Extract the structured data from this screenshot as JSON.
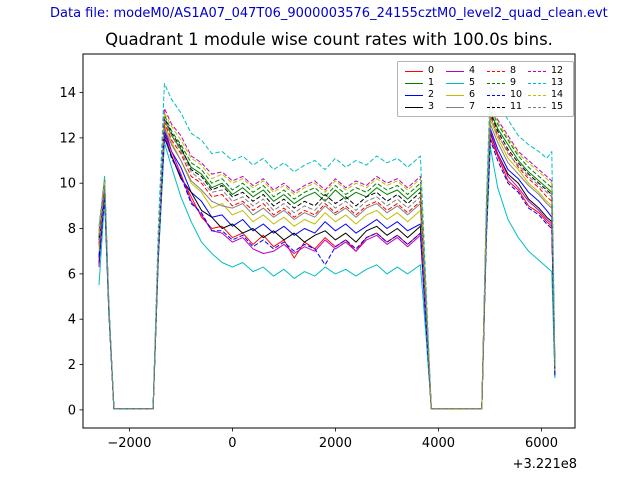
{
  "header": {
    "data_file_label": "Data file: modeM0/AS1A07_047T06_9000003576_24155cztM0_level2_quad_clean.evt",
    "color": "#0000cc"
  },
  "chart_data": {
    "type": "line",
    "title": "Quadrant 1 module wise count rates with 100.0s bins.",
    "xlabel": "",
    "ylabel": "",
    "x_offset_label": "+3.221e8",
    "xlim": [
      -2900,
      6650
    ],
    "ylim": [
      -0.8,
      15.7
    ],
    "xticks": {
      "values": [
        -2000,
        0,
        2000,
        4000,
        6000
      ],
      "labels": [
        "−2000",
        "0",
        "2000",
        "4000",
        "6000"
      ]
    },
    "yticks": {
      "values": [
        0,
        2,
        4,
        6,
        8,
        10,
        12,
        14
      ],
      "labels": [
        "0",
        "2",
        "4",
        "6",
        "8",
        "10",
        "12",
        "14"
      ]
    },
    "grid": false,
    "legend_position": "upper right",
    "x": [
      -2590,
      -2480,
      -2400,
      -2300,
      -1540,
      -1440,
      -1320,
      -1180,
      -1000,
      -800,
      -600,
      -400,
      -200,
      0,
      200,
      400,
      600,
      800,
      1000,
      1200,
      1400,
      1600,
      1800,
      2000,
      2200,
      2400,
      2600,
      2800,
      3000,
      3200,
      3400,
      3650,
      3760,
      3860,
      4840,
      4930,
      5005,
      5150,
      5350,
      5550,
      5750,
      5950,
      6100,
      6200,
      6260
    ],
    "series": [
      {
        "name": "0",
        "color": "#ff0000",
        "dash": "solid",
        "values": [
          6.4,
          9.7,
          4.5,
          0.05,
          0.05,
          6.7,
          12.2,
          11.2,
          10.3,
          9.4,
          8.5,
          8.0,
          8.1,
          7.6,
          7.8,
          7.3,
          7.7,
          7.2,
          7.5,
          6.7,
          7.4,
          7.1,
          7.6,
          7.2,
          7.5,
          7.0,
          7.6,
          7.8,
          7.4,
          7.7,
          7.3,
          7.8,
          3.7,
          0.05,
          0.05,
          7.8,
          12.0,
          11.2,
          10.1,
          9.7,
          9.0,
          8.7,
          8.3,
          8.1,
          1.6
        ]
      },
      {
        "name": "1",
        "color": "#008000",
        "dash": "solid",
        "values": [
          7.6,
          10.0,
          4.6,
          0.05,
          0.05,
          7.0,
          12.8,
          12.1,
          11.5,
          10.7,
          10.4,
          9.8,
          10.0,
          9.5,
          9.8,
          9.4,
          9.7,
          9.2,
          9.5,
          9.1,
          9.4,
          9.6,
          9.2,
          9.7,
          9.3,
          9.6,
          9.4,
          9.8,
          9.5,
          9.7,
          9.3,
          9.8,
          4.7,
          0.05,
          0.05,
          8.6,
          13.2,
          12.4,
          11.7,
          11.0,
          10.5,
          10.1,
          9.8,
          9.6,
          1.8
        ]
      },
      {
        "name": "2",
        "color": "#0000ff",
        "dash": "solid",
        "values": [
          6.8,
          9.5,
          4.4,
          0.05,
          0.05,
          6.8,
          12.3,
          11.4,
          10.7,
          9.6,
          9.2,
          8.5,
          8.6,
          8.1,
          8.4,
          7.9,
          8.2,
          7.8,
          8.1,
          7.7,
          8.0,
          7.8,
          8.3,
          7.9,
          8.2,
          7.8,
          8.1,
          8.4,
          8.0,
          8.3,
          7.9,
          8.2,
          4.1,
          0.05,
          0.05,
          8.1,
          12.4,
          11.5,
          10.6,
          10.2,
          9.6,
          9.2,
          8.8,
          8.5,
          1.7
        ]
      },
      {
        "name": "3",
        "color": "#000000",
        "dash": "solid",
        "values": [
          6.7,
          9.6,
          4.5,
          0.05,
          0.05,
          6.6,
          12.0,
          11.2,
          10.2,
          9.6,
          8.8,
          8.5,
          8.0,
          8.2,
          7.8,
          8.0,
          7.6,
          7.9,
          7.5,
          7.8,
          7.4,
          7.7,
          7.9,
          7.5,
          7.8,
          7.4,
          7.9,
          8.1,
          7.7,
          8.0,
          7.6,
          8.1,
          3.9,
          0.05,
          0.05,
          7.9,
          12.2,
          11.3,
          10.4,
          10.0,
          9.3,
          8.9,
          8.5,
          8.3,
          1.6
        ]
      },
      {
        "name": "4",
        "color": "#bf00bf",
        "dash": "solid",
        "values": [
          6.3,
          9.8,
          4.4,
          0.05,
          0.05,
          6.9,
          12.5,
          11.4,
          10.4,
          9.2,
          8.6,
          7.9,
          7.8,
          7.4,
          7.6,
          7.1,
          6.9,
          7.0,
          7.3,
          6.9,
          7.2,
          7.0,
          7.5,
          7.1,
          7.4,
          7.0,
          7.5,
          7.7,
          7.3,
          7.6,
          7.2,
          7.7,
          3.6,
          0.05,
          0.05,
          8.0,
          12.3,
          11.3,
          10.3,
          9.8,
          9.2,
          8.8,
          8.4,
          8.2,
          1.5
        ]
      },
      {
        "name": "5",
        "color": "#00bfbf",
        "dash": "solid",
        "values": [
          5.5,
          9.3,
          4.3,
          0.05,
          0.05,
          6.5,
          11.8,
          10.7,
          9.4,
          8.3,
          7.4,
          6.9,
          6.5,
          6.3,
          6.5,
          6.1,
          6.3,
          5.9,
          6.2,
          5.8,
          6.1,
          5.9,
          6.3,
          6.0,
          6.2,
          5.9,
          6.2,
          6.4,
          6.0,
          6.3,
          6.0,
          6.4,
          3.2,
          0.05,
          0.05,
          7.5,
          11.6,
          9.8,
          8.4,
          7.6,
          7.0,
          6.6,
          6.3,
          6.1,
          1.4
        ]
      },
      {
        "name": "6",
        "color": "#bfbf00",
        "dash": "solid",
        "values": [
          7.0,
          10.3,
          4.7,
          0.05,
          0.05,
          6.9,
          12.6,
          11.8,
          11.0,
          10.0,
          9.6,
          8.9,
          9.1,
          8.6,
          8.8,
          8.3,
          8.6,
          8.2,
          8.5,
          8.1,
          8.4,
          8.2,
          8.7,
          8.3,
          8.6,
          8.2,
          8.6,
          8.8,
          8.4,
          8.7,
          8.3,
          8.8,
          4.2,
          0.05,
          0.05,
          8.3,
          12.8,
          12.0,
          11.1,
          10.6,
          10.0,
          9.6,
          9.2,
          9.0,
          1.7
        ]
      },
      {
        "name": "7",
        "color": "#808080",
        "dash": "solid",
        "values": [
          7.2,
          9.9,
          4.6,
          0.05,
          0.05,
          6.8,
          12.4,
          11.7,
          11.0,
          10.1,
          9.7,
          9.2,
          9.0,
          8.9,
          9.1,
          8.6,
          8.9,
          8.5,
          8.8,
          8.4,
          8.7,
          8.5,
          9.0,
          8.6,
          8.9,
          8.5,
          8.9,
          9.1,
          8.7,
          9.0,
          8.6,
          9.1,
          4.4,
          0.05,
          0.05,
          8.2,
          12.6,
          11.8,
          10.9,
          10.4,
          9.9,
          9.5,
          9.1,
          8.9,
          1.8
        ]
      },
      {
        "name": "8",
        "color": "#ff0000",
        "dash": "dashed",
        "values": [
          7.3,
          9.8,
          4.5,
          0.05,
          0.05,
          7.0,
          12.7,
          11.9,
          11.3,
          10.3,
          10.0,
          9.4,
          9.5,
          9.0,
          9.2,
          8.8,
          9.1,
          8.6,
          8.9,
          8.5,
          8.8,
          8.6,
          9.1,
          8.7,
          9.0,
          8.6,
          9.0,
          9.2,
          8.8,
          9.1,
          8.7,
          9.2,
          4.5,
          0.05,
          0.05,
          8.5,
          13.0,
          12.1,
          11.4,
          10.7,
          10.2,
          9.8,
          9.4,
          9.2,
          1.9
        ]
      },
      {
        "name": "9",
        "color": "#008000",
        "dash": "dashed",
        "values": [
          7.7,
          10.1,
          4.7,
          0.05,
          0.05,
          7.2,
          13.0,
          12.3,
          11.7,
          10.9,
          10.6,
          10.0,
          10.2,
          9.7,
          10.0,
          9.6,
          9.9,
          9.4,
          9.7,
          9.3,
          9.6,
          9.8,
          9.4,
          9.9,
          9.5,
          9.8,
          9.6,
          10.0,
          9.7,
          9.9,
          9.5,
          10.0,
          4.8,
          0.05,
          0.05,
          8.7,
          13.4,
          12.6,
          11.9,
          11.2,
          10.7,
          10.3,
          10.0,
          9.8,
          1.9
        ]
      },
      {
        "name": "10",
        "color": "#0000ff",
        "dash": "dashed",
        "values": [
          6.5,
          9.4,
          4.4,
          0.05,
          0.05,
          6.7,
          12.1,
          11.1,
          10.3,
          9.1,
          8.7,
          7.9,
          7.9,
          7.5,
          7.7,
          7.2,
          7.5,
          7.1,
          7.4,
          7.0,
          7.3,
          7.1,
          6.4,
          7.2,
          7.5,
          7.1,
          7.6,
          7.8,
          7.4,
          7.7,
          7.3,
          7.8,
          3.7,
          0.05,
          0.05,
          7.7,
          11.9,
          11.0,
          10.0,
          9.6,
          8.9,
          8.6,
          8.2,
          8.0,
          1.5
        ]
      },
      {
        "name": "11",
        "color": "#000000",
        "dash": "dashed",
        "values": [
          7.5,
          10.0,
          4.6,
          0.05,
          0.05,
          7.1,
          12.9,
          12.2,
          11.6,
          10.6,
          10.3,
          9.7,
          9.9,
          9.4,
          9.6,
          9.2,
          9.5,
          9.0,
          9.3,
          8.9,
          9.2,
          9.0,
          9.5,
          9.1,
          9.4,
          9.0,
          9.4,
          9.6,
          9.2,
          9.5,
          9.1,
          9.6,
          4.6,
          0.05,
          0.05,
          8.6,
          13.1,
          12.3,
          11.5,
          10.9,
          10.4,
          10.0,
          9.7,
          9.5,
          1.8
        ]
      },
      {
        "name": "12",
        "color": "#bf00bf",
        "dash": "dashed",
        "values": [
          7.9,
          10.2,
          4.7,
          0.05,
          0.05,
          7.3,
          13.3,
          12.6,
          12.1,
          11.2,
          10.9,
          10.4,
          10.5,
          10.1,
          10.3,
          9.9,
          10.2,
          9.7,
          10.0,
          9.6,
          9.9,
          10.1,
          9.7,
          10.2,
          9.8,
          10.1,
          9.9,
          10.3,
          10.0,
          10.2,
          9.8,
          10.3,
          5.0,
          0.05,
          0.05,
          8.9,
          13.6,
          12.8,
          12.1,
          11.4,
          11.0,
          10.6,
          10.3,
          10.1,
          2.0
        ]
      },
      {
        "name": "13",
        "color": "#00bfbf",
        "dash": "dashed",
        "values": [
          8.1,
          10.3,
          4.8,
          0.05,
          0.05,
          7.9,
          14.4,
          13.7,
          13.1,
          12.2,
          11.9,
          11.3,
          11.4,
          11.0,
          11.2,
          10.8,
          11.1,
          10.6,
          10.9,
          10.5,
          10.8,
          11.0,
          10.6,
          11.1,
          10.7,
          11.0,
          10.8,
          11.2,
          10.9,
          11.1,
          10.7,
          11.2,
          5.4,
          0.05,
          0.05,
          9.3,
          14.3,
          13.5,
          12.8,
          12.1,
          11.7,
          11.4,
          11.1,
          11.4,
          2.1
        ]
      },
      {
        "name": "14",
        "color": "#bfbf00",
        "dash": "dashed",
        "values": [
          7.8,
          10.1,
          4.7,
          0.05,
          0.05,
          7.2,
          13.1,
          12.5,
          11.9,
          11.1,
          10.8,
          10.2,
          10.4,
          10.0,
          10.2,
          9.8,
          10.1,
          9.6,
          9.9,
          9.5,
          9.8,
          10.0,
          9.6,
          10.1,
          9.7,
          10.0,
          9.8,
          10.2,
          9.9,
          10.1,
          9.7,
          10.2,
          4.9,
          0.05,
          0.05,
          8.8,
          13.4,
          12.7,
          12.0,
          11.3,
          10.9,
          10.5,
          10.2,
          10.0,
          1.9
        ]
      },
      {
        "name": "15",
        "color": "#808080",
        "dash": "dashed",
        "values": [
          7.4,
          9.9,
          4.6,
          0.05,
          0.05,
          7.0,
          12.8,
          12.1,
          11.4,
          10.5,
          10.1,
          9.6,
          9.7,
          9.2,
          9.4,
          9.0,
          9.3,
          8.8,
          9.1,
          8.7,
          9.0,
          8.8,
          9.3,
          8.9,
          9.2,
          8.8,
          9.2,
          9.4,
          9.0,
          9.3,
          8.9,
          9.4,
          4.5,
          0.05,
          0.05,
          8.4,
          12.9,
          12.2,
          11.3,
          10.8,
          10.3,
          9.9,
          9.6,
          9.4,
          1.8
        ]
      }
    ]
  }
}
